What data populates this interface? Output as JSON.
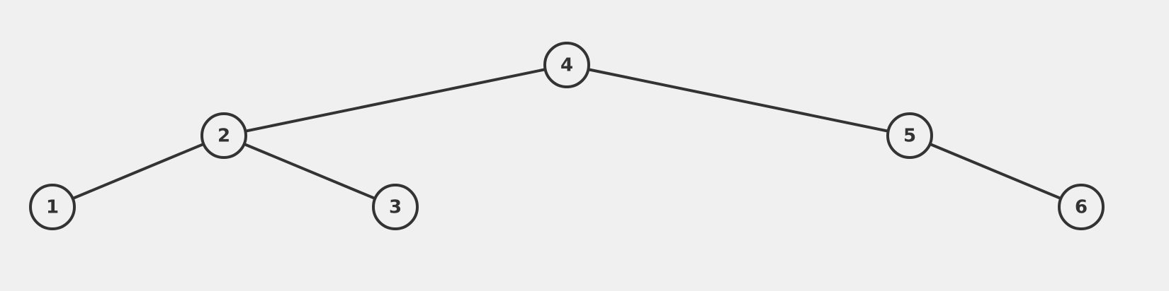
{
  "diagram": {
    "type": "binary-tree",
    "root": "4",
    "nodes": [
      {
        "id": "n4",
        "label": "4"
      },
      {
        "id": "n2",
        "label": "2"
      },
      {
        "id": "n5",
        "label": "5"
      },
      {
        "id": "n1",
        "label": "1"
      },
      {
        "id": "n3",
        "label": "3"
      },
      {
        "id": "n6",
        "label": "6"
      }
    ],
    "edges": [
      {
        "from": "n4",
        "to": "n2"
      },
      {
        "from": "n4",
        "to": "n5"
      },
      {
        "from": "n2",
        "to": "n1"
      },
      {
        "from": "n2",
        "to": "n3"
      },
      {
        "from": "n5",
        "to": "n6"
      }
    ]
  },
  "colors": {
    "background": "#f0f0f0",
    "stroke": "#333333",
    "text": "#333333"
  }
}
